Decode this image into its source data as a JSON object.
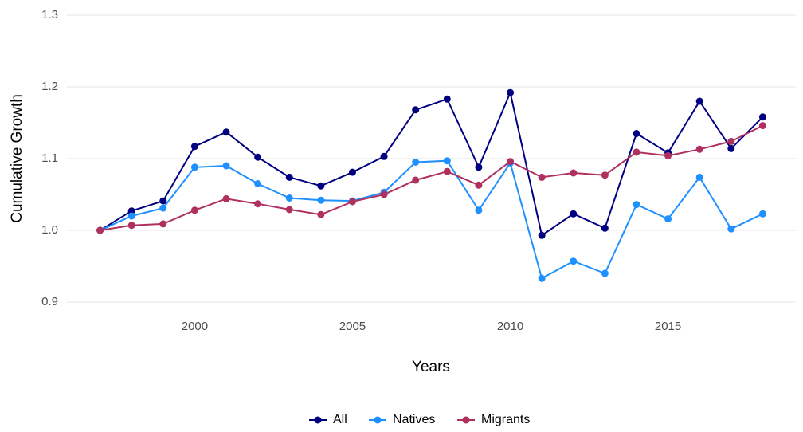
{
  "chart_data": {
    "type": "line",
    "x_label": "Years",
    "y_label": "Cumulative Growth",
    "x": [
      1997,
      1998,
      1999,
      2000,
      2001,
      2002,
      2003,
      2004,
      2005,
      2006,
      2007,
      2008,
      2009,
      2010,
      2011,
      2012,
      2013,
      2014,
      2015,
      2016,
      2017,
      2018
    ],
    "series": [
      {
        "name": "All",
        "color": "#000080",
        "values": [
          1.0,
          1.027,
          1.041,
          1.117,
          1.137,
          1.102,
          1.074,
          1.062,
          1.081,
          1.103,
          1.168,
          1.183,
          1.088,
          1.192,
          0.993,
          1.023,
          1.003,
          1.135,
          1.108,
          1.18,
          1.114,
          1.158
        ]
      },
      {
        "name": "Natives",
        "color": "#1e90ff",
        "values": [
          1.0,
          1.02,
          1.031,
          1.088,
          1.09,
          1.065,
          1.045,
          1.042,
          1.041,
          1.053,
          1.095,
          1.097,
          1.028,
          1.094,
          0.933,
          0.957,
          0.94,
          1.036,
          1.016,
          1.074,
          1.002,
          1.023
        ]
      },
      {
        "name": "Migrants",
        "color": "#b03060",
        "values": [
          1.0,
          1.007,
          1.009,
          1.028,
          1.044,
          1.037,
          1.029,
          1.022,
          1.04,
          1.05,
          1.07,
          1.082,
          1.063,
          1.096,
          1.074,
          1.08,
          1.077,
          1.109,
          1.104,
          1.113,
          1.124,
          1.146
        ]
      }
    ],
    "xlim": [
      1995.95,
      2019.05
    ],
    "xticks": [
      2000,
      2005,
      2010,
      2015
    ],
    "ylim": [
      0.88,
      1.32
    ],
    "yticks": [
      0.9,
      {
        "value": 1.0,
        "label": "1.0"
      },
      1.1,
      1.2,
      1.3
    ],
    "grid": true,
    "legend": "bottom"
  }
}
